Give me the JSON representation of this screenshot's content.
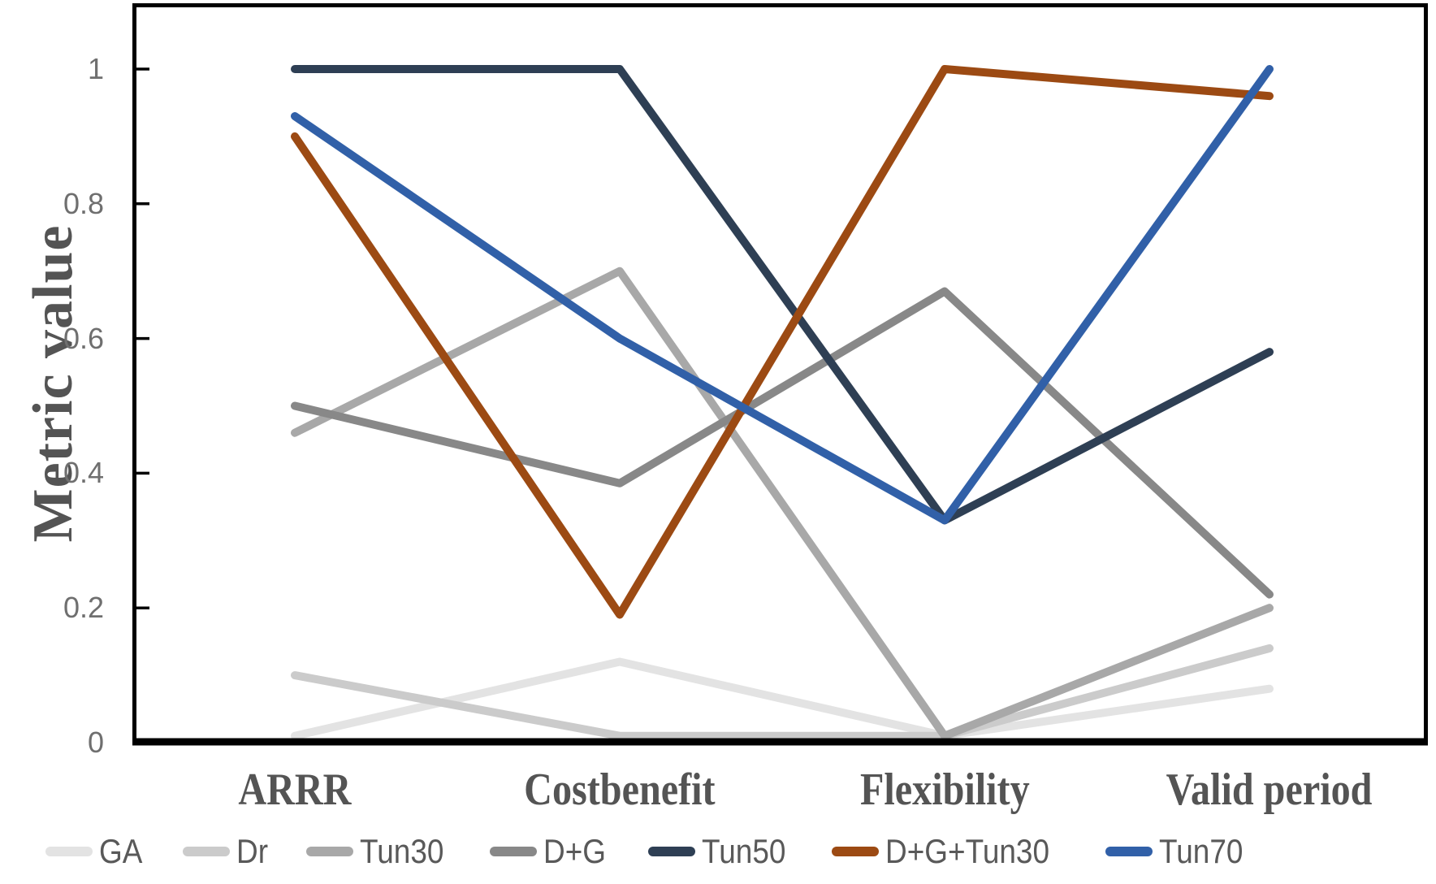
{
  "chart_data": {
    "type": "line",
    "title": "",
    "xlabel": "",
    "ylabel": "Metric value",
    "categories": [
      "ARRR",
      "Costbenefit",
      "Flexibility",
      "Valid period"
    ],
    "y_ticks": [
      0,
      0.2,
      0.4,
      0.6,
      0.8,
      1
    ],
    "y_tick_labels": [
      "0",
      "0.2",
      "0.4",
      "0.6",
      "0.8",
      "1"
    ],
    "ylim": [
      0,
      1.09
    ],
    "grid": false,
    "legend_position": "bottom",
    "axis_color": "#000000",
    "tick_text_color": "#6f6f6f",
    "serif_text_color": "#545454",
    "legend_text_color": "#595959",
    "series": [
      {
        "name": "GA",
        "color": "#e3e3e3",
        "values": [
          0.01,
          0.12,
          0.01,
          0.08
        ]
      },
      {
        "name": "Dr",
        "color": "#cbcbcb",
        "values": [
          0.1,
          0.01,
          0.01,
          0.14
        ]
      },
      {
        "name": "Tun30",
        "color": "#a8a8a8",
        "values": [
          0.46,
          0.7,
          0.01,
          0.2
        ]
      },
      {
        "name": "D+G",
        "color": "#888888",
        "values": [
          0.5,
          0.385,
          0.67,
          0.22
        ]
      },
      {
        "name": "Tun50",
        "color": "#2e3f54",
        "values": [
          1.0,
          1.0,
          0.33,
          0.58
        ]
      },
      {
        "name": "D+G+Tun30",
        "color": "#9c4a13",
        "values": [
          0.9,
          0.19,
          1.0,
          0.96
        ]
      },
      {
        "name": "Tun70",
        "color": "#3160a8",
        "values": [
          0.93,
          0.6,
          0.33,
          1.0
        ]
      }
    ]
  }
}
